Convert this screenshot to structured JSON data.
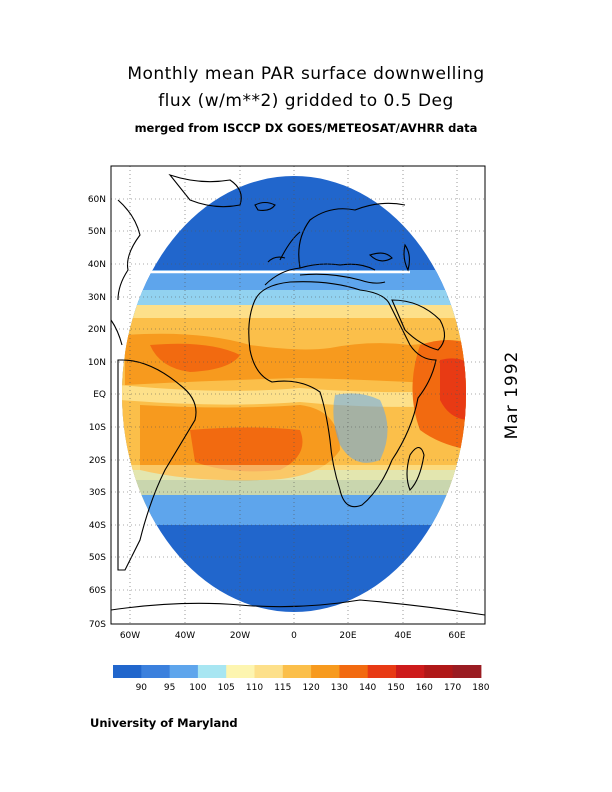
{
  "title": {
    "line1": "Monthly mean PAR surface downwelling",
    "line2": "flux (w/m**2) gridded to 0.5 Deg",
    "line3": "merged from ISCCP DX GOES/METEOSAT/AVHRR data"
  },
  "date_label": "Mar 1992",
  "credit": "University of Maryland",
  "map": {
    "lat_labels": [
      "60N",
      "50N",
      "40N",
      "30N",
      "20N",
      "10N",
      "EQ",
      "10S",
      "20S",
      "30S",
      "40S",
      "50S",
      "60S",
      "70S"
    ],
    "lon_labels": [
      "60W",
      "40W",
      "20W",
      "0",
      "20E",
      "40E",
      "60E"
    ]
  },
  "colorbar": {
    "colors": [
      "#2166cc",
      "#3b80dd",
      "#5ea5ec",
      "#a8e6f2",
      "#fdf5b0",
      "#fde08a",
      "#fbbf4a",
      "#f79a1e",
      "#f26a10",
      "#e83a14",
      "#cd1b1b",
      "#b01818",
      "#9a1c22"
    ],
    "labels": [
      "90",
      "95",
      "100",
      "105",
      "110",
      "115",
      "120",
      "130",
      "140",
      "150",
      "160",
      "170",
      "180"
    ]
  }
}
